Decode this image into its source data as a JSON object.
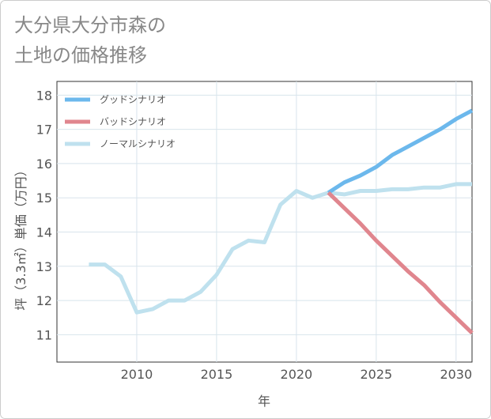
{
  "chart_data": {
    "type": "line",
    "title_lines": [
      "大分県大分市森の",
      "土地の価格推移"
    ],
    "xlabel": "年",
    "ylabel": "坪（3.3㎡）単価（万円）",
    "xlim": [
      2005,
      2031
    ],
    "ylim": [
      10.2,
      18.4
    ],
    "xticks": [
      2010,
      2015,
      2020,
      2025,
      2030
    ],
    "yticks": [
      11,
      12,
      13,
      14,
      15,
      16,
      17,
      18
    ],
    "grid": true,
    "legend_position": "top-left",
    "series": [
      {
        "name": "グッドシナリオ",
        "color": "#6cb8ec",
        "x": [
          2022,
          2023,
          2024,
          2025,
          2026,
          2027,
          2028,
          2029,
          2030,
          2031
        ],
        "values": [
          15.15,
          15.45,
          15.65,
          15.9,
          16.25,
          16.5,
          16.75,
          17.0,
          17.3,
          17.55
        ]
      },
      {
        "name": "バッドシナリオ",
        "color": "#e0868e",
        "x": [
          2022,
          2023,
          2024,
          2025,
          2026,
          2027,
          2028,
          2029,
          2030,
          2031
        ],
        "values": [
          15.15,
          14.7,
          14.25,
          13.75,
          13.3,
          12.85,
          12.45,
          11.95,
          11.5,
          11.05
        ]
      },
      {
        "name": "ノーマルシナリオ",
        "color": "#bfe1ee",
        "x": [
          2007,
          2008,
          2009,
          2010,
          2011,
          2012,
          2013,
          2014,
          2015,
          2016,
          2017,
          2018,
          2019,
          2020,
          2021,
          2022,
          2023,
          2024,
          2025,
          2026,
          2027,
          2028,
          2029,
          2030,
          2031
        ],
        "values": [
          13.05,
          13.05,
          12.7,
          11.65,
          11.75,
          12.0,
          12.0,
          12.25,
          12.75,
          13.5,
          13.75,
          13.7,
          14.8,
          15.2,
          15.0,
          15.15,
          15.1,
          15.2,
          15.2,
          15.25,
          15.25,
          15.3,
          15.3,
          15.4,
          15.4
        ]
      }
    ]
  }
}
